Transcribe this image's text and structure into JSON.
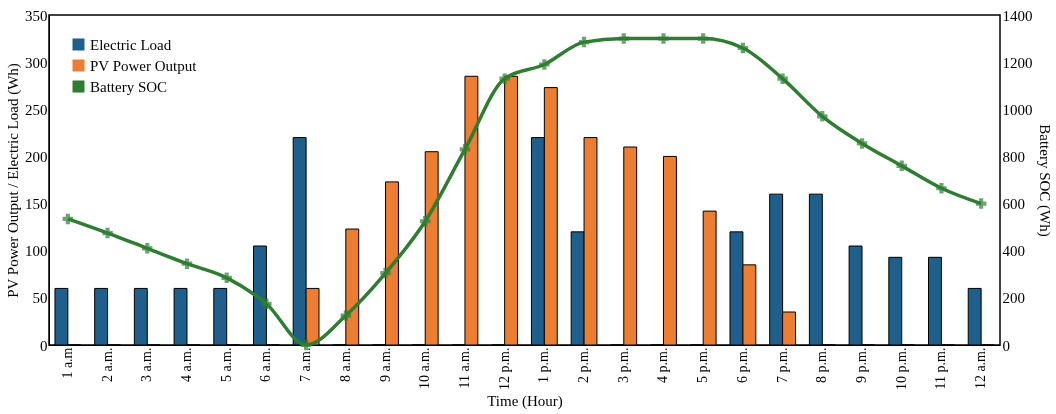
{
  "chart_data": {
    "type": "bar",
    "xlabel": "Time (Hour)",
    "ylabel": "PV Power Output / Electric Load (Wh)",
    "y2label": "Battery SOC (Wh)",
    "categories": [
      "1 a.m",
      "2 a.m.",
      "3 a.m.",
      "4 a.m.",
      "5 a.m.",
      "6 a.m.",
      "7 a.m.",
      "8 a.m.",
      "9 a.m.",
      "10 a.m.",
      "11 a.m.",
      "12 p.m.",
      "1 p.m.",
      "2 p.m.",
      "3 p.m.",
      "4 p.m.",
      "5 p.m.",
      "6 p.m.",
      "7 p.m.",
      "8 p.m.",
      "9 p.m.",
      "10 p.m.",
      "11 p.m.",
      "12 a.m."
    ],
    "series": [
      {
        "name": "Electric Load",
        "color": "#1f5f8b",
        "values": [
          60,
          60,
          60,
          60,
          60,
          105,
          220,
          0,
          0,
          0,
          0,
          0,
          220,
          120,
          0,
          0,
          0,
          120,
          160,
          160,
          105,
          93,
          93,
          60
        ]
      },
      {
        "name": "PV Power Output",
        "color": "#ed7d31",
        "values": [
          0,
          0,
          0,
          0,
          0,
          0,
          60,
          123,
          173,
          205,
          285,
          285,
          273,
          220,
          210,
          200,
          142,
          85,
          35,
          0,
          0,
          0,
          0,
          0
        ]
      },
      {
        "name": "Battery SOC",
        "color": "#2e7d32",
        "type": "line",
        "axis": "y2",
        "marker": "cross",
        "values": [
          535,
          475,
          410,
          345,
          285,
          175,
          0,
          125,
          305,
          525,
          830,
          1130,
          1190,
          1285,
          1300,
          1300,
          1300,
          1260,
          1130,
          970,
          855,
          760,
          665,
          600
        ]
      }
    ],
    "ylim": [
      0,
      350
    ],
    "yticks": [
      0,
      50,
      100,
      150,
      200,
      250,
      300,
      350
    ],
    "y2lim": [
      0,
      1400
    ],
    "y2ticks": [
      0,
      200,
      400,
      600,
      800,
      1000,
      1200,
      1400
    ],
    "legend": "top left",
    "grid": false
  }
}
